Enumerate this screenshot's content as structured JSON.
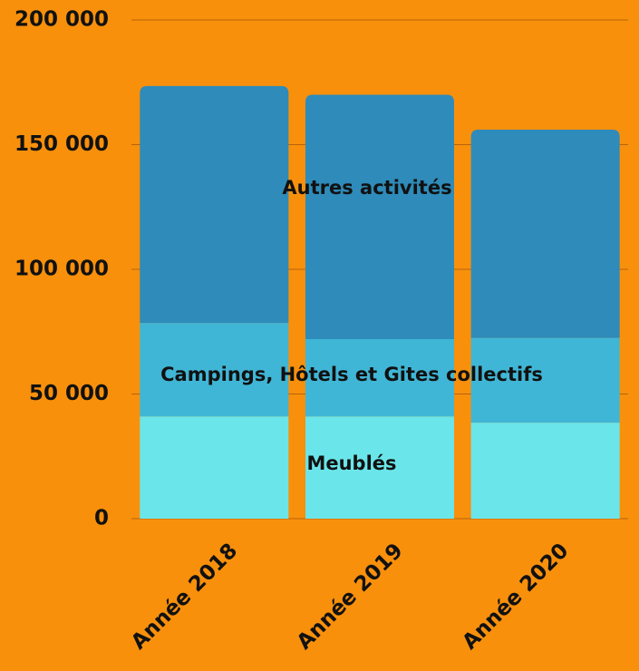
{
  "chart_data": {
    "type": "stacked_bar",
    "categories": [
      "Année 2018",
      "Année 2019",
      "Année 2020"
    ],
    "series": [
      {
        "name": "Meublés",
        "color": "#6ae6ea",
        "values": [
          41000,
          41000,
          38500
        ]
      },
      {
        "name": "Campings, Hôtels et Gites collectifs",
        "color": "#40b6d6",
        "values": [
          37500,
          31000,
          34000
        ]
      },
      {
        "name": "Autres activités",
        "color": "#2e8bba",
        "values": [
          95000,
          98000,
          83500
        ]
      }
    ],
    "ylim": [
      0,
      200000
    ],
    "yticks": [
      {
        "value": 0,
        "label": "0"
      },
      {
        "value": 50000,
        "label": "50 000"
      },
      {
        "value": 100000,
        "label": "100 000"
      },
      {
        "value": 150000,
        "label": "150 000"
      },
      {
        "value": 200000,
        "label": "200 000"
      }
    ],
    "grid": true
  }
}
